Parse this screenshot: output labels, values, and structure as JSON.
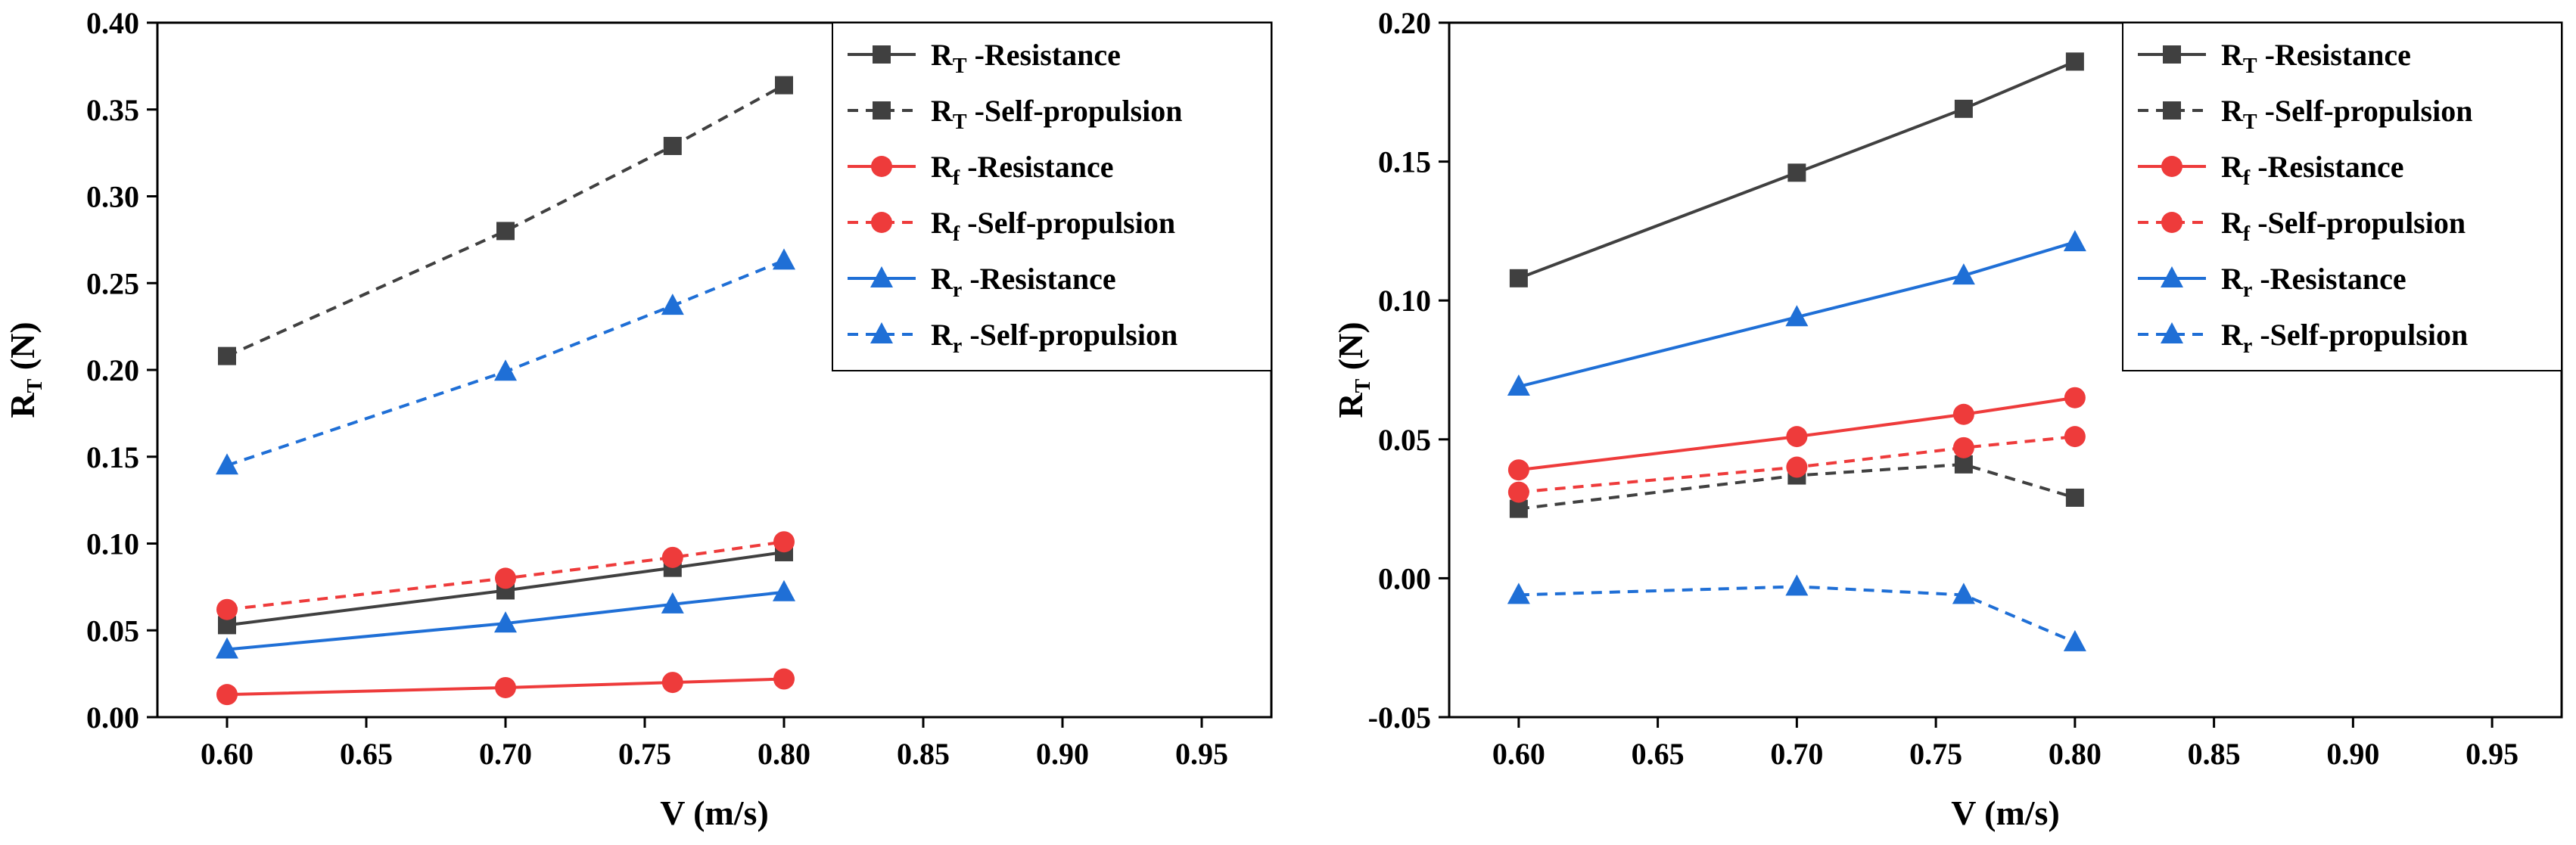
{
  "chart_data": [
    {
      "type": "line",
      "title": "",
      "xlabel": "V (m/s)",
      "ylabel": "R_T (N)",
      "ylabel_main": "R",
      "ylabel_sub": "T",
      "ylabel_rest": " (N)",
      "xlim": [
        0.575,
        0.975
      ],
      "ylim": [
        0.0,
        0.4
      ],
      "xticks": [
        0.6,
        0.65,
        0.7,
        0.75,
        0.8,
        0.85,
        0.9,
        0.95
      ],
      "xtick_labels": [
        "0.60",
        "0.65",
        "0.70",
        "0.75",
        "0.80",
        "0.85",
        "0.90",
        "0.95"
      ],
      "yticks": [
        0.0,
        0.05,
        0.1,
        0.15,
        0.2,
        0.25,
        0.3,
        0.35,
        0.4
      ],
      "ytick_labels": [
        "0.00",
        "0.05",
        "0.10",
        "0.15",
        "0.20",
        "0.25",
        "0.30",
        "0.35",
        "0.40"
      ],
      "legend_position": "top-right",
      "series": [
        {
          "name": "R_T -Resistance",
          "main": "R",
          "sub": "T",
          "rest": " -Resistance",
          "color": "#404040",
          "marker": "square",
          "dash": false,
          "x": [
            0.6,
            0.7,
            0.76,
            0.8
          ],
          "values": [
            0.053,
            0.073,
            0.086,
            0.095
          ]
        },
        {
          "name": "R_T -Self-propulsion",
          "main": "R",
          "sub": "T",
          "rest": " -Self-propulsion",
          "color": "#404040",
          "marker": "square",
          "dash": true,
          "x": [
            0.6,
            0.7,
            0.76,
            0.8
          ],
          "values": [
            0.208,
            0.28,
            0.329,
            0.364
          ]
        },
        {
          "name": "R_f -Resistance",
          "main": "R",
          "sub": "f",
          "rest": " -Resistance",
          "color": "#ee3b3b",
          "marker": "circle",
          "dash": false,
          "x": [
            0.6,
            0.7,
            0.76,
            0.8
          ],
          "values": [
            0.013,
            0.017,
            0.02,
            0.022
          ]
        },
        {
          "name": "R_f -Self-propulsion",
          "main": "R",
          "sub": "f",
          "rest": " -Self-propulsion",
          "color": "#ee3b3b",
          "marker": "circle",
          "dash": true,
          "x": [
            0.6,
            0.7,
            0.76,
            0.8
          ],
          "values": [
            0.062,
            0.08,
            0.092,
            0.101
          ]
        },
        {
          "name": "R_r -Resistance",
          "main": "R",
          "sub": "r",
          "rest": " -Resistance",
          "color": "#1f6fd6",
          "marker": "triangle",
          "dash": false,
          "x": [
            0.6,
            0.7,
            0.76,
            0.8
          ],
          "values": [
            0.039,
            0.054,
            0.065,
            0.072
          ]
        },
        {
          "name": "R_r -Self-propulsion",
          "main": "R",
          "sub": "r",
          "rest": " -Self-propulsion",
          "color": "#1f6fd6",
          "marker": "triangle",
          "dash": true,
          "x": [
            0.6,
            0.7,
            0.76,
            0.8
          ],
          "values": [
            0.145,
            0.199,
            0.237,
            0.263
          ]
        }
      ]
    },
    {
      "type": "line",
      "title": "",
      "xlabel": "V (m/s)",
      "ylabel": "R_T (N)",
      "ylabel_main": "R",
      "ylabel_sub": "T",
      "ylabel_rest": " (N)",
      "xlim": [
        0.575,
        0.975
      ],
      "ylim": [
        -0.05,
        0.2
      ],
      "xticks": [
        0.6,
        0.65,
        0.7,
        0.75,
        0.8,
        0.85,
        0.9,
        0.95
      ],
      "xtick_labels": [
        "0.60",
        "0.65",
        "0.70",
        "0.75",
        "0.80",
        "0.85",
        "0.90",
        "0.95"
      ],
      "yticks": [
        -0.05,
        0.0,
        0.05,
        0.1,
        0.15,
        0.2
      ],
      "ytick_labels": [
        "-0.05",
        "0.00",
        "0.05",
        "0.10",
        "0.15",
        "0.20"
      ],
      "legend_position": "top-right",
      "series": [
        {
          "name": "R_T -Resistance",
          "main": "R",
          "sub": "T",
          "rest": " -Resistance",
          "color": "#404040",
          "marker": "square",
          "dash": false,
          "x": [
            0.6,
            0.7,
            0.76,
            0.8
          ],
          "values": [
            0.108,
            0.146,
            0.169,
            0.186
          ]
        },
        {
          "name": "R_T -Self-propulsion",
          "main": "R",
          "sub": "T",
          "rest": " -Self-propulsion",
          "color": "#404040",
          "marker": "square",
          "dash": true,
          "x": [
            0.6,
            0.7,
            0.76,
            0.8
          ],
          "values": [
            0.025,
            0.037,
            0.041,
            0.029
          ]
        },
        {
          "name": "R_f -Resistance",
          "main": "R",
          "sub": "f",
          "rest": " -Resistance",
          "color": "#ee3b3b",
          "marker": "circle",
          "dash": false,
          "x": [
            0.6,
            0.7,
            0.76,
            0.8
          ],
          "values": [
            0.039,
            0.051,
            0.059,
            0.065
          ]
        },
        {
          "name": "R_f -Self-propulsion",
          "main": "R",
          "sub": "f",
          "rest": " -Self-propulsion",
          "color": "#ee3b3b",
          "marker": "circle",
          "dash": true,
          "x": [
            0.6,
            0.7,
            0.76,
            0.8
          ],
          "values": [
            0.031,
            0.04,
            0.047,
            0.051
          ]
        },
        {
          "name": "R_r -Resistance",
          "main": "R",
          "sub": "r",
          "rest": " -Resistance",
          "color": "#1f6fd6",
          "marker": "triangle",
          "dash": false,
          "x": [
            0.6,
            0.7,
            0.76,
            0.8
          ],
          "values": [
            0.069,
            0.094,
            0.109,
            0.121
          ]
        },
        {
          "name": "R_r -Self-propulsion",
          "main": "R",
          "sub": "r",
          "rest": " -Self-propulsion",
          "color": "#1f6fd6",
          "marker": "triangle",
          "dash": true,
          "x": [
            0.6,
            0.7,
            0.76,
            0.8
          ],
          "values": [
            -0.006,
            -0.003,
            -0.006,
            -0.023
          ]
        }
      ]
    }
  ]
}
